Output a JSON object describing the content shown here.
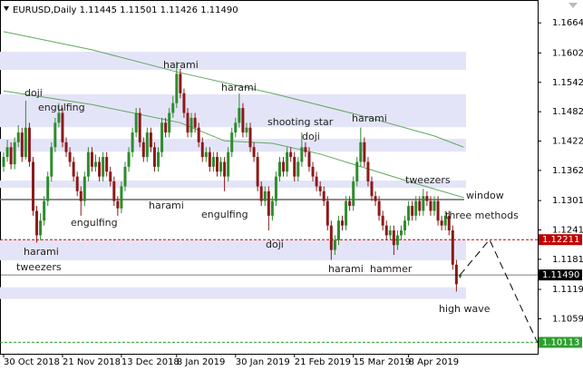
{
  "chart_data": {
    "type": "candlestick",
    "header": "EURUSD,Daily  1.11445 1.11501 1.11426 1.11490",
    "up_color": "#2e8b2e",
    "down_color": "#8b1a1a",
    "ylim": [
      1.0988,
      1.1707
    ],
    "yticks": [
      {
        "value": 1.1664,
        "label": "1.16640"
      },
      1.16025,
      1.15425,
      1.14825,
      1.14225,
      1.13625,
      {
        "value": 1.1301,
        "label": "1.13010"
      },
      {
        "value": 1.1241,
        "label": "1.12410"
      },
      {
        "value": 1.1181,
        "label": "1.11810"
      },
      1.11195,
      1.10595
    ],
    "xticks": [
      {
        "value": 0,
        "label": "30 Oct 2018"
      },
      {
        "value": 16,
        "label": "21 Nov 2018"
      },
      {
        "value": 32,
        "label": "13 Dec 2018"
      },
      {
        "value": 47,
        "label": "8 Jan 2019"
      },
      {
        "value": 63,
        "label": "30 Jan 2019"
      },
      {
        "value": 79,
        "label": "21 Feb 2019"
      },
      {
        "value": 95,
        "label": "15 Mar 2019"
      },
      {
        "value": 110,
        "label": "8 Apr 2019"
      }
    ],
    "open": [
      1.137,
      1.139,
      1.141,
      1.1375,
      1.142,
      1.144,
      1.139,
      1.145,
      1.138,
      1.128,
      1.123,
      1.126,
      1.13,
      1.135,
      1.141,
      1.146,
      1.148,
      1.142,
      1.14,
      1.138,
      1.135,
      1.132,
      1.13,
      1.135,
      1.14,
      1.137,
      1.138,
      1.135,
      1.139,
      1.136,
      1.134,
      1.13,
      1.1285,
      1.133,
      1.137,
      1.14,
      1.144,
      1.148,
      1.142,
      1.139,
      1.144,
      1.141,
      1.137,
      1.14,
      1.146,
      1.144,
      1.148,
      1.15,
      1.156,
      1.152,
      1.148,
      1.144,
      1.147,
      1.145,
      1.142,
      1.139,
      1.14,
      1.137,
      1.139,
      1.136,
      1.138,
      1.135,
      1.14,
      1.144,
      1.146,
      1.149,
      1.144,
      1.145,
      1.141,
      1.139,
      1.133,
      1.13,
      1.132,
      1.127,
      1.13,
      1.135,
      1.138,
      1.136,
      1.14,
      1.139,
      1.135,
      1.138,
      1.141,
      1.14,
      1.137,
      1.135,
      1.133,
      1.132,
      1.13,
      1.125,
      1.12,
      1.122,
      1.126,
      1.125,
      1.13,
      1.129,
      1.134,
      1.138,
      1.142,
      1.138,
      1.134,
      1.131,
      1.13,
      1.127,
      1.125,
      1.123,
      1.124,
      1.121,
      1.123,
      1.124,
      1.126,
      1.129,
      1.127,
      1.13,
      1.128,
      1.131,
      1.13,
      1.128,
      1.13,
      1.126,
      1.125,
      1.127,
      1.124,
      1.117,
      1.11445
    ],
    "high": [
      1.14,
      1.1425,
      1.142,
      1.143,
      1.1455,
      1.145,
      1.1505,
      1.146,
      1.139,
      1.129,
      1.1275,
      1.131,
      1.136,
      1.142,
      1.147,
      1.15,
      1.149,
      1.143,
      1.141,
      1.139,
      1.136,
      1.133,
      1.136,
      1.141,
      1.141,
      1.1395,
      1.139,
      1.14,
      1.14,
      1.137,
      1.135,
      1.131,
      1.134,
      1.138,
      1.141,
      1.145,
      1.149,
      1.149,
      1.143,
      1.145,
      1.145,
      1.142,
      1.141,
      1.147,
      1.147,
      1.149,
      1.1515,
      1.1585,
      1.157,
      1.153,
      1.149,
      1.148,
      1.148,
      1.146,
      1.143,
      1.141,
      1.141,
      1.14,
      1.14,
      1.139,
      1.139,
      1.141,
      1.145,
      1.147,
      1.152,
      1.15,
      1.146,
      1.146,
      1.142,
      1.14,
      1.134,
      1.133,
      1.133,
      1.131,
      1.136,
      1.139,
      1.139,
      1.141,
      1.141,
      1.14,
      1.139,
      1.144,
      1.142,
      1.141,
      1.138,
      1.136,
      1.134,
      1.133,
      1.131,
      1.126,
      1.123,
      1.127,
      1.127,
      1.131,
      1.131,
      1.135,
      1.139,
      1.145,
      1.143,
      1.139,
      1.135,
      1.132,
      1.131,
      1.128,
      1.126,
      1.125,
      1.125,
      1.124,
      1.125,
      1.127,
      1.13,
      1.13,
      1.131,
      1.131,
      1.1325,
      1.132,
      1.131,
      1.131,
      1.131,
      1.127,
      1.128,
      1.128,
      1.125,
      1.118,
      1.11501
    ],
    "low": [
      1.136,
      1.138,
      1.1365,
      1.1365,
      1.141,
      1.138,
      1.1385,
      1.137,
      1.127,
      1.1215,
      1.122,
      1.125,
      1.129,
      1.134,
      1.14,
      1.145,
      1.141,
      1.139,
      1.137,
      1.134,
      1.131,
      1.127,
      1.129,
      1.134,
      1.136,
      1.136,
      1.134,
      1.134,
      1.135,
      1.133,
      1.129,
      1.127,
      1.1275,
      1.132,
      1.136,
      1.139,
      1.143,
      1.141,
      1.138,
      1.138,
      1.14,
      1.136,
      1.136,
      1.139,
      1.143,
      1.143,
      1.147,
      1.149,
      1.151,
      1.147,
      1.143,
      1.143,
      1.144,
      1.141,
      1.138,
      1.138,
      1.136,
      1.136,
      1.135,
      1.135,
      1.132,
      1.134,
      1.139,
      1.143,
      1.145,
      1.143,
      1.143,
      1.14,
      1.138,
      1.132,
      1.129,
      1.129,
      1.124,
      1.126,
      1.129,
      1.134,
      1.135,
      1.135,
      1.138,
      1.134,
      1.134,
      1.137,
      1.139,
      1.136,
      1.134,
      1.132,
      1.131,
      1.129,
      1.124,
      1.118,
      1.119,
      1.121,
      1.124,
      1.124,
      1.128,
      1.128,
      1.133,
      1.137,
      1.137,
      1.133,
      1.13,
      1.129,
      1.126,
      1.124,
      1.122,
      1.122,
      1.119,
      1.12,
      1.122,
      1.123,
      1.125,
      1.126,
      1.126,
      1.127,
      1.127,
      1.129,
      1.127,
      1.127,
      1.125,
      1.124,
      1.124,
      1.123,
      1.116,
      1.1115,
      1.11426
    ],
    "close": [
      1.139,
      1.141,
      1.1375,
      1.142,
      1.144,
      1.139,
      1.145,
      1.138,
      1.128,
      1.123,
      1.126,
      1.13,
      1.135,
      1.141,
      1.146,
      1.148,
      1.142,
      1.14,
      1.138,
      1.135,
      1.132,
      1.13,
      1.135,
      1.14,
      1.137,
      1.138,
      1.135,
      1.139,
      1.136,
      1.134,
      1.13,
      1.1285,
      1.133,
      1.137,
      1.14,
      1.144,
      1.148,
      1.142,
      1.139,
      1.144,
      1.141,
      1.137,
      1.14,
      1.146,
      1.144,
      1.148,
      1.15,
      1.156,
      1.152,
      1.148,
      1.144,
      1.147,
      1.145,
      1.142,
      1.139,
      1.14,
      1.137,
      1.139,
      1.136,
      1.138,
      1.135,
      1.14,
      1.144,
      1.146,
      1.149,
      1.144,
      1.145,
      1.141,
      1.139,
      1.133,
      1.13,
      1.132,
      1.127,
      1.13,
      1.135,
      1.138,
      1.136,
      1.14,
      1.139,
      1.135,
      1.138,
      1.141,
      1.14,
      1.137,
      1.135,
      1.133,
      1.132,
      1.13,
      1.125,
      1.12,
      1.122,
      1.126,
      1.125,
      1.13,
      1.129,
      1.134,
      1.138,
      1.142,
      1.138,
      1.134,
      1.131,
      1.13,
      1.127,
      1.125,
      1.123,
      1.124,
      1.121,
      1.123,
      1.124,
      1.126,
      1.129,
      1.127,
      1.13,
      1.128,
      1.131,
      1.13,
      1.128,
      1.13,
      1.126,
      1.125,
      1.127,
      1.124,
      1.117,
      1.113,
      1.1149
    ],
    "moving_averages": [
      {
        "color": "#5faa5f",
        "x": [
          0,
          24,
          48,
          73,
          98,
          117,
          125
        ],
        "values": [
          1.1646,
          1.1609,
          1.1562,
          1.152,
          1.1473,
          1.1433,
          1.141
        ]
      },
      {
        "color": "#5faa5f",
        "x": [
          0,
          24,
          48,
          60,
          73,
          86,
          98,
          110,
          120,
          125
        ],
        "values": [
          1.1525,
          1.1497,
          1.146,
          1.1423,
          1.1418,
          1.1396,
          1.1368,
          1.134,
          1.1318,
          1.1307
        ]
      }
    ],
    "zones": [
      [
        1.1568,
        1.1605
      ],
      [
        1.1451,
        1.1518
      ],
      [
        1.1401,
        1.1427
      ],
      [
        1.1327,
        1.1342
      ],
      [
        1.1179,
        1.122
      ],
      [
        1.11,
        1.1124
      ]
    ],
    "zone_color": "#e4e4f8",
    "window_line": 1.1303,
    "levels": [
      {
        "value": 1.12211,
        "label": "1.12211",
        "color": "#c00000",
        "dash": true
      },
      {
        "value": 1.1149,
        "label": "1.11490",
        "color": "#000000",
        "dash": false
      },
      {
        "value": 1.10113,
        "label": "1.10113",
        "color": "#2e9e2e",
        "dash": true
      }
    ],
    "projection": {
      "x": [
        124,
        132,
        145
      ],
      "values": [
        1.1149,
        1.12211,
        1.10113
      ]
    },
    "annotations": [
      "doji",
      "engulfing",
      "harami",
      "harami",
      "shooting star",
      "doji",
      "harami",
      "tweezers",
      "window",
      "three methods",
      "harami",
      "engulfing",
      "engulfing",
      "doji",
      "harami",
      "tweezers",
      "harami",
      "hammer",
      "high wave"
    ]
  }
}
